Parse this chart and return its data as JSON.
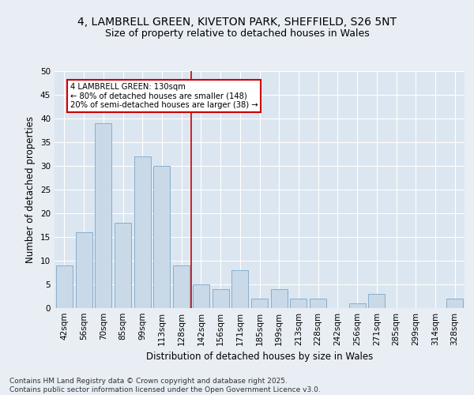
{
  "title1": "4, LAMBRELL GREEN, KIVETON PARK, SHEFFIELD, S26 5NT",
  "title2": "Size of property relative to detached houses in Wales",
  "xlabel": "Distribution of detached houses by size in Wales",
  "ylabel": "Number of detached properties",
  "bar_labels": [
    "42sqm",
    "56sqm",
    "70sqm",
    "85sqm",
    "99sqm",
    "113sqm",
    "128sqm",
    "142sqm",
    "156sqm",
    "171sqm",
    "185sqm",
    "199sqm",
    "213sqm",
    "228sqm",
    "242sqm",
    "256sqm",
    "271sqm",
    "285sqm",
    "299sqm",
    "314sqm",
    "328sqm"
  ],
  "bar_values": [
    9,
    16,
    39,
    18,
    32,
    30,
    9,
    5,
    4,
    8,
    2,
    4,
    2,
    2,
    0,
    1,
    3,
    0,
    0,
    0,
    2
  ],
  "bar_color": "#c9d9e8",
  "bar_edge_color": "#7aa8c8",
  "vline_color": "#cc0000",
  "annotation_text": "4 LAMBRELL GREEN: 130sqm\n← 80% of detached houses are smaller (148)\n20% of semi-detached houses are larger (38) →",
  "annotation_box_color": "#cc0000",
  "background_color": "#e8eef4",
  "plot_bg_color": "#dce6f0",
  "grid_color": "#ffffff",
  "ylim": [
    0,
    50
  ],
  "yticks": [
    0,
    5,
    10,
    15,
    20,
    25,
    30,
    35,
    40,
    45,
    50
  ],
  "footer_text": "Contains HM Land Registry data © Crown copyright and database right 2025.\nContains public sector information licensed under the Open Government Licence v3.0.",
  "title_fontsize": 10,
  "subtitle_fontsize": 9,
  "axis_label_fontsize": 8.5,
  "tick_fontsize": 7.5,
  "footer_fontsize": 6.5
}
